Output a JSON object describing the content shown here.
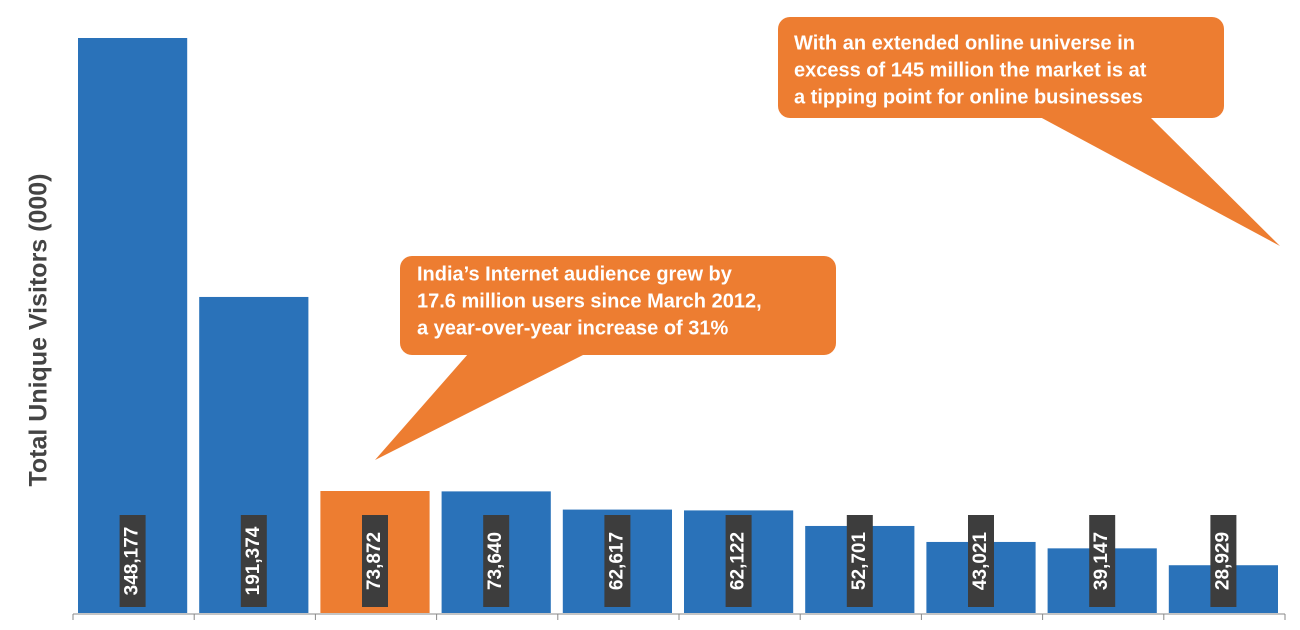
{
  "chart_data": {
    "type": "bar",
    "y_label": "Total Unique Visitors (000)",
    "categories": [
      null,
      null,
      null,
      null,
      null,
      null,
      null,
      null,
      null,
      null
    ],
    "values": [
      348177,
      191374,
      73872,
      73640,
      62617,
      62122,
      52701,
      43021,
      39147,
      28929
    ],
    "value_labels": [
      "348,177",
      "191,374",
      "73,872",
      "73,640",
      "62,617",
      "62,122",
      "52,701",
      "43,021",
      "39,147",
      "28,929"
    ],
    "colors": [
      "#2a72b9",
      "#2a72b9",
      "#ed7d31",
      "#2a72b9",
      "#2a72b9",
      "#2a72b9",
      "#2a72b9",
      "#2a72b9",
      "#2a72b9",
      "#2a72b9"
    ],
    "annotations": [
      {
        "lines": [
          "With an extended online universe in",
          "excess of 145 million the market is at",
          "a tipping point for online businesses"
        ],
        "color": "#ed7d31"
      },
      {
        "lines": [
          "India’s Internet audience grew by",
          "17.6 million users since March 2012,",
          "a year-over-year increase of 31%"
        ],
        "color": "#ed7d31"
      }
    ]
  }
}
